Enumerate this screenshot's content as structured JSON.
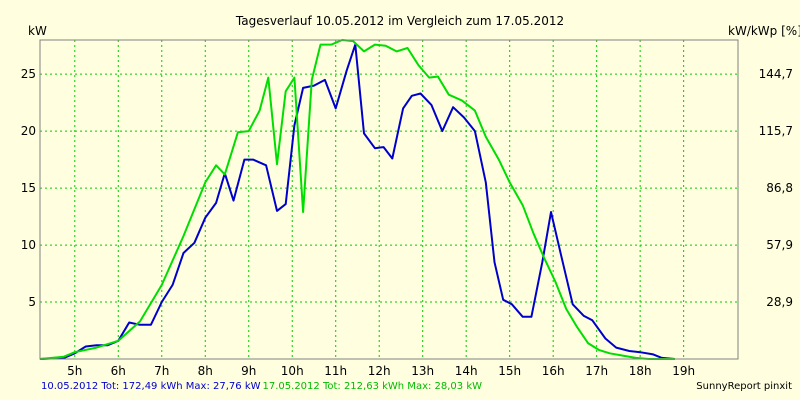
{
  "chart_data": {
    "type": "line",
    "title": "Tagesverlauf 10.05.2012 im Vergleich zum 17.05.2012",
    "ylabel_left": "kW",
    "ylabel_right": "kW/kWp [%]",
    "x_ticks": [
      "5h",
      "6h",
      "7h",
      "8h",
      "9h",
      "10h",
      "11h",
      "12h",
      "13h",
      "14h",
      "15h",
      "16h",
      "17h",
      "18h",
      "19h"
    ],
    "x_tick_values": [
      5,
      6,
      7,
      8,
      9,
      10,
      11,
      12,
      13,
      14,
      15,
      16,
      17,
      18,
      19
    ],
    "xlim": [
      4.2,
      20.25
    ],
    "ylim": [
      0,
      28
    ],
    "y_ticks_left": [
      "5",
      "10",
      "15",
      "20",
      "25"
    ],
    "y_tick_values_left": [
      5,
      10,
      15,
      20,
      25
    ],
    "y_ticks_right": [
      "28,9",
      "57,9",
      "86,8",
      "115,7",
      "144,7"
    ],
    "grid": true,
    "grid_color": "#00cc00",
    "series": [
      {
        "name": "10.05.2012",
        "color": "#0000cc",
        "points": [
          [
            4.2,
            0
          ],
          [
            4.75,
            0.1
          ],
          [
            5.0,
            0.5
          ],
          [
            5.25,
            1.1
          ],
          [
            5.5,
            1.2
          ],
          [
            5.75,
            1.2
          ],
          [
            6.0,
            1.6
          ],
          [
            6.25,
            3.2
          ],
          [
            6.5,
            3.0
          ],
          [
            6.75,
            3.0
          ],
          [
            7.0,
            5.0
          ],
          [
            7.25,
            6.5
          ],
          [
            7.5,
            9.3
          ],
          [
            7.75,
            10.2
          ],
          [
            8.0,
            12.4
          ],
          [
            8.25,
            13.7
          ],
          [
            8.45,
            16.3
          ],
          [
            8.65,
            13.9
          ],
          [
            8.9,
            17.5
          ],
          [
            9.1,
            17.5
          ],
          [
            9.4,
            17.0
          ],
          [
            9.65,
            13.0
          ],
          [
            9.85,
            13.6
          ],
          [
            10.05,
            20.5
          ],
          [
            10.25,
            23.8
          ],
          [
            10.5,
            24.0
          ],
          [
            10.75,
            24.5
          ],
          [
            11.0,
            22.0
          ],
          [
            11.25,
            25.3
          ],
          [
            11.45,
            27.6
          ],
          [
            11.65,
            19.8
          ],
          [
            11.9,
            18.5
          ],
          [
            12.1,
            18.6
          ],
          [
            12.3,
            17.6
          ],
          [
            12.55,
            22.0
          ],
          [
            12.75,
            23.1
          ],
          [
            12.95,
            23.3
          ],
          [
            13.2,
            22.3
          ],
          [
            13.45,
            20.0
          ],
          [
            13.7,
            22.1
          ],
          [
            13.95,
            21.2
          ],
          [
            14.2,
            20.0
          ],
          [
            14.45,
            15.5
          ],
          [
            14.65,
            8.5
          ],
          [
            14.85,
            5.2
          ],
          [
            15.05,
            4.8
          ],
          [
            15.3,
            3.7
          ],
          [
            15.5,
            3.7
          ],
          [
            15.75,
            8.5
          ],
          [
            15.95,
            12.9
          ],
          [
            16.2,
            8.8
          ],
          [
            16.45,
            4.8
          ],
          [
            16.7,
            3.8
          ],
          [
            16.9,
            3.4
          ],
          [
            17.2,
            1.8
          ],
          [
            17.45,
            1.0
          ],
          [
            17.75,
            0.7
          ],
          [
            18.0,
            0.6
          ],
          [
            18.3,
            0.4
          ],
          [
            18.5,
            0.1
          ],
          [
            18.8,
            0
          ]
        ]
      },
      {
        "name": "17.05.2012",
        "color": "#00dd00",
        "points": [
          [
            4.2,
            0
          ],
          [
            4.75,
            0.2
          ],
          [
            5.0,
            0.6
          ],
          [
            5.5,
            1.0
          ],
          [
            6.0,
            1.6
          ],
          [
            6.5,
            3.3
          ],
          [
            7.0,
            6.5
          ],
          [
            7.5,
            10.8
          ],
          [
            8.0,
            15.5
          ],
          [
            8.25,
            17.0
          ],
          [
            8.45,
            16.2
          ],
          [
            8.75,
            19.9
          ],
          [
            9.0,
            20.0
          ],
          [
            9.25,
            21.8
          ],
          [
            9.45,
            24.7
          ],
          [
            9.65,
            17.1
          ],
          [
            9.85,
            23.5
          ],
          [
            10.05,
            24.7
          ],
          [
            10.25,
            12.9
          ],
          [
            10.45,
            24.5
          ],
          [
            10.65,
            27.6
          ],
          [
            10.9,
            27.6
          ],
          [
            11.15,
            28.0
          ],
          [
            11.4,
            27.9
          ],
          [
            11.65,
            27.0
          ],
          [
            11.9,
            27.6
          ],
          [
            12.15,
            27.5
          ],
          [
            12.4,
            27.0
          ],
          [
            12.65,
            27.3
          ],
          [
            12.9,
            25.8
          ],
          [
            13.15,
            24.7
          ],
          [
            13.35,
            24.8
          ],
          [
            13.6,
            23.2
          ],
          [
            13.9,
            22.7
          ],
          [
            14.2,
            21.8
          ],
          [
            14.45,
            19.5
          ],
          [
            14.75,
            17.5
          ],
          [
            15.0,
            15.5
          ],
          [
            15.3,
            13.5
          ],
          [
            15.55,
            11.0
          ],
          [
            15.8,
            8.8
          ],
          [
            16.05,
            6.8
          ],
          [
            16.3,
            4.4
          ],
          [
            16.55,
            2.8
          ],
          [
            16.8,
            1.4
          ],
          [
            17.05,
            0.8
          ],
          [
            17.3,
            0.5
          ],
          [
            17.6,
            0.3
          ],
          [
            17.9,
            0.1
          ],
          [
            18.2,
            0
          ],
          [
            18.8,
            0
          ]
        ]
      }
    ],
    "footer": {
      "s1_label": "10.05.2012 Tot: 172,49 kWh Max: 27,76 kW",
      "s2_label": "17.05.2012 Tot: 212,63 kWh Max: 28,03 kW",
      "credit": "SunnyReport pinxit"
    }
  }
}
